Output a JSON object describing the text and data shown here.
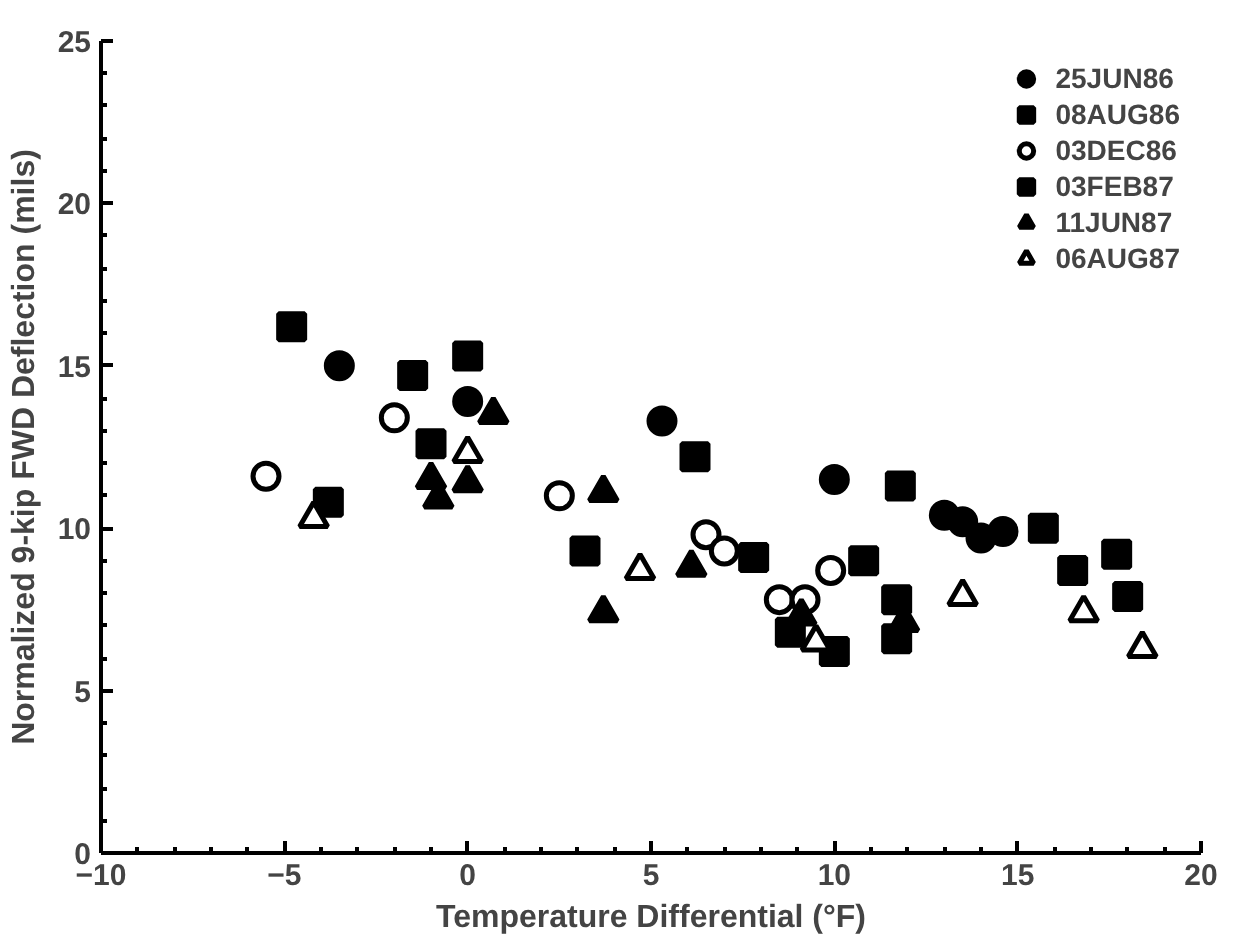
{
  "chart_data": {
    "type": "scatter",
    "xlabel": "Temperature Differential (°F)",
    "ylabel": "Normalized 9-kip FWD Deflection (mils)",
    "xlim": [
      -10,
      20
    ],
    "ylim": [
      0,
      25
    ],
    "xticks": [
      -10,
      -5,
      0,
      5,
      10,
      15,
      20
    ],
    "yticks": [
      0,
      5,
      10,
      15,
      20,
      25
    ],
    "grid": false,
    "legend": "top right",
    "series": [
      {
        "name": "25JUN86",
        "color": "#000000",
        "marker": "circle",
        "x": [
          -3.5,
          0,
          5.3,
          10,
          13,
          13.5,
          14.0,
          14.6
        ],
        "values": [
          15.0,
          13.9,
          13.3,
          11.5,
          10.4,
          10.2,
          9.7,
          9.9
        ]
      },
      {
        "name": "08AUG86",
        "color": "#000000",
        "marker": "square",
        "x": [
          -4.8,
          -1.5,
          0,
          -1,
          -3.8,
          3.2,
          6.2,
          7.8,
          8.8
        ],
        "values": [
          16.2,
          14.7,
          15.3,
          12.6,
          10.8,
          9.3,
          12.2,
          9.1,
          6.8
        ]
      },
      {
        "name": "03DEC86",
        "color": "#000000",
        "marker": "circle_open",
        "x": [
          -5.5,
          -2,
          2.5,
          6.5,
          7,
          8.5,
          9.2,
          9.9
        ],
        "values": [
          11.6,
          13.4,
          11.0,
          9.8,
          9.3,
          7.8,
          7.8,
          8.7
        ]
      },
      {
        "name": "03FEB87",
        "color": "#000000",
        "marker": "square",
        "x": [
          10,
          10.8,
          11.8,
          11.7,
          11.7,
          15.7,
          16.5,
          17.7,
          18
        ],
        "values": [
          6.2,
          9.0,
          11.3,
          7.8,
          6.6,
          10.0,
          8.7,
          9.2,
          7.9
        ]
      },
      {
        "name": "11JUN87",
        "color": "#000000",
        "marker": "triangle",
        "x": [
          -1,
          -0.8,
          0,
          0.7,
          3.7,
          3.7,
          6.1,
          9.1,
          11.9
        ],
        "values": [
          11.5,
          10.9,
          11.4,
          13.5,
          11.1,
          7.4,
          8.8,
          7.3,
          7.1
        ]
      },
      {
        "name": "06AUG87",
        "color": "#000000",
        "marker": "triangle_open",
        "x": [
          -4.2,
          0,
          4.7,
          9.5,
          13.5,
          16.8,
          18.4
        ],
        "values": [
          10.3,
          12.3,
          8.7,
          6.5,
          7.9,
          7.4,
          6.3
        ]
      }
    ]
  }
}
